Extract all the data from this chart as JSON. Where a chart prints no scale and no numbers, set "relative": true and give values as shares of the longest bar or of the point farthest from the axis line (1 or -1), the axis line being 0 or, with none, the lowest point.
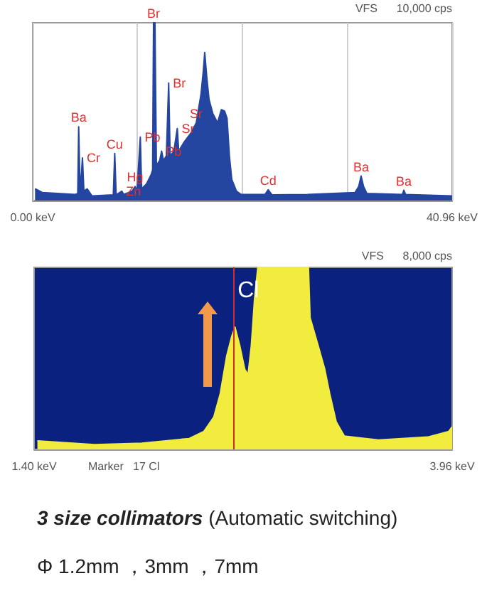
{
  "chart_data": [
    {
      "type": "area",
      "relative": true,
      "grid": "x",
      "annotations": [
        "VFS 10,000 cps",
        {
          "text": "Ba",
          "x": 4.49,
          "y": 0.415
        },
        {
          "text": "Cr",
          "x": 4.86,
          "y": 0.24
        },
        {
          "text": "Cu",
          "x": 8.01,
          "y": 0.265
        },
        {
          "text": "Zn",
          "x": 8.7,
          "y": 0.053
        },
        {
          "text": "Hg",
          "x": 10.0,
          "y": 0.079
        },
        {
          "text": "Pb",
          "x": 10.51,
          "y": 0.357
        },
        {
          "text": "Br",
          "x": 11.8,
          "y": 1
        },
        {
          "text": "Pb",
          "x": 12.59,
          "y": 0.278
        },
        {
          "text": "Br",
          "x": 13.28,
          "y": 0.661
        },
        {
          "text": "Sr",
          "x": 14.12,
          "y": 0.405
        },
        {
          "text": "Sr",
          "x": 15.97,
          "y": 0.437
        },
        {
          "text": "Cd",
          "x": 23.0,
          "y": 0.061
        },
        {
          "text": "Ba",
          "x": 32.07,
          "y": 0.138
        },
        {
          "text": "Ba",
          "x": 36.24,
          "y": 0.058
        }
      ],
      "xlim": [
        0,
        40.96
      ],
      "xticks": [
        {
          "value": 0,
          "label": "0.00 keV"
        },
        {
          "value": 10.24,
          "label": null
        },
        {
          "value": 20.48,
          "label": null
        },
        {
          "value": 30.72,
          "label": null
        },
        {
          "value": 40.96,
          "label": "40.96 keV"
        }
      ],
      "x": [
        0.23,
        0.93,
        4.17,
        4.4,
        4.49,
        4.63,
        4.86,
        5.0,
        5.32,
        5.79,
        7.87,
        8.01,
        8.15,
        8.7,
        8.89,
        9.72,
        10.0,
        10.18,
        10.51,
        10.64,
        11.11,
        11.57,
        11.71,
        11.8,
        11.94,
        12.08,
        12.4,
        12.59,
        12.77,
        13.05,
        13.28,
        13.42,
        13.79,
        14.12,
        14.26,
        14.81,
        15.5,
        15.97,
        16.43,
        16.66,
        16.8,
        16.99,
        17.22,
        17.59,
        18.05,
        18.42,
        18.74,
        18.98,
        19.21,
        19.44,
        19.9,
        20.36,
        22.68,
        23.0,
        23.37,
        26.84,
        31.47,
        31.84,
        32.07,
        32.31,
        32.63,
        36.1,
        36.24,
        36.42,
        40.96
      ],
      "series": [
        {
          "color": "#2445a0",
          "values": [
            0.066,
            0.045,
            0.034,
            0.04,
            0.415,
            0.04,
            0.24,
            0.053,
            0.066,
            0.026,
            0.032,
            0.265,
            0.032,
            0.053,
            0.034,
            0.053,
            0.079,
            0.053,
            0.357,
            0.066,
            0.093,
            0.146,
            0.172,
            1,
            1,
            0.198,
            0.225,
            0.278,
            0.225,
            0.251,
            0.661,
            0.251,
            0.278,
            0.405,
            0.278,
            0.331,
            0.384,
            0.437,
            0.595,
            0.728,
            0.833,
            0.701,
            0.569,
            0.489,
            0.437,
            0.511,
            0.503,
            0.463,
            0.251,
            0.119,
            0.053,
            0.034,
            0.034,
            0.061,
            0.032,
            0.034,
            0.045,
            0.079,
            0.138,
            0.079,
            0.04,
            0.034,
            0.058,
            0.034,
            0.026
          ]
        }
      ]
    },
    {
      "type": "area",
      "relative": true,
      "annotations": [
        "VFS 8,000 cps",
        "Marker 17 Cl",
        {
          "text": "Cl",
          "x": 2.62,
          "y": 0.87
        }
      ],
      "xlim": [
        1.4,
        3.96
      ],
      "xticks": [
        {
          "value": 1.4,
          "label": "1.40 keV"
        },
        {
          "value": 3.96,
          "label": "3.96 keV"
        }
      ],
      "x": [
        1.42,
        1.77,
        2.06,
        2.35,
        2.44,
        2.5,
        2.54,
        2.58,
        2.61,
        2.63,
        2.66,
        2.69,
        2.71,
        2.73,
        2.75,
        2.77,
        3.08,
        3.09,
        3.14,
        3.18,
        3.21,
        3.25,
        3.3,
        3.51,
        3.81,
        3.94,
        3.96
      ],
      "series": [
        {
          "color": "#f2ec3e",
          "values": [
            0.047,
            0.026,
            0.034,
            0.06,
            0.099,
            0.177,
            0.307,
            0.516,
            0.62,
            0.672,
            0.568,
            0.44,
            0.41,
            0.568,
            0.828,
            1,
            1,
            0.724,
            0.568,
            0.44,
            0.307,
            0.151,
            0.073,
            0.052,
            0.068,
            0.099,
            0.125
          ]
        }
      ],
      "ref_lines": [
        {
          "axis": "x",
          "value": 2.62,
          "color": "#d62a2a"
        }
      ]
    },
    {
      "type": "other",
      "annotations": [
        "3 size collimators",
        "(Automatic switching)",
        "Φ 1.2mm ，3mm ，7mm"
      ]
    }
  ]
}
